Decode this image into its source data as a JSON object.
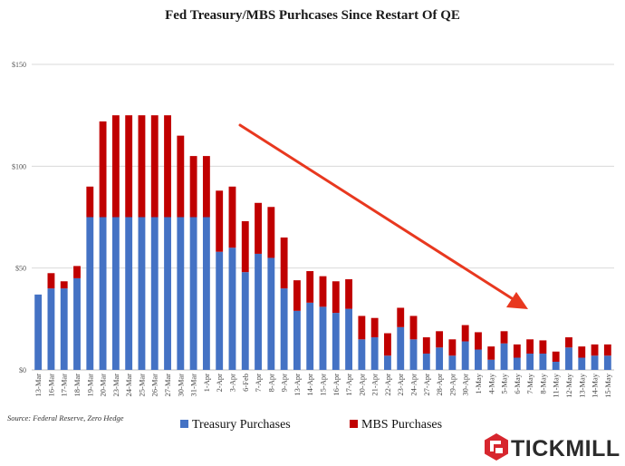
{
  "colors": {
    "treasury": "#4472c4",
    "mbs": "#c00000",
    "arrow": "#e8381f",
    "grid": "#d9d9d9",
    "logo": "#d7262e"
  },
  "logo": {
    "text": "TICKMILL",
    "icon": "tickmill-hexagon-icon"
  },
  "source": "Source: Federal Reserve, Zero Hedge",
  "annotation": {
    "type": "downward-trend-arrow"
  },
  "chart_data": {
    "type": "bar",
    "stacked": true,
    "title": "Fed Treasury/MBS Purhcases Since Restart Of QE",
    "xlabel": "",
    "ylabel": "",
    "ylim": [
      0,
      150
    ],
    "yticks": [
      {
        "value": 0,
        "label": "$0"
      },
      {
        "value": 50,
        "label": "$50"
      },
      {
        "value": 100,
        "label": "$100"
      },
      {
        "value": 150,
        "label": "$150"
      }
    ],
    "grid": true,
    "legend_position": "bottom-center",
    "categories": [
      "13-Mar",
      "16-Mar",
      "17-Mar",
      "18-Mar",
      "19-Mar",
      "20-Mar",
      "23-Mar",
      "24-Mar",
      "25-Mar",
      "26-Mar",
      "27-Mar",
      "30-Mar",
      "31-Mar",
      "1-Apr",
      "2-Apr",
      "3-Apr",
      "6-Feb",
      "7-Apr",
      "8-Apr",
      "9-Apr",
      "13-Apr",
      "14-Apr",
      "15-Apr",
      "16-Apr",
      "17-Apr",
      "20-Apr",
      "21-Apr",
      "22-Apr",
      "23-Apr",
      "24-Apr",
      "27-Apr",
      "28-Apr",
      "29-Apr",
      "30-Apr",
      "1-May",
      "4-May",
      "5-May",
      "6-May",
      "7-May",
      "8-May",
      "11-May",
      "12-May",
      "13-May",
      "14-May",
      "15-May"
    ],
    "series": [
      {
        "name": "Treasury Purchases",
        "values": [
          37,
          40,
          40,
          45,
          75,
          75,
          75,
          75,
          75,
          75,
          75,
          75,
          75,
          75,
          58,
          60,
          48,
          57,
          55,
          40,
          29,
          33,
          31,
          28,
          30,
          15,
          16,
          7,
          21,
          15,
          8,
          11,
          7,
          14,
          10,
          5,
          13,
          6,
          8,
          8,
          4,
          11,
          6,
          7,
          7
        ]
      },
      {
        "name": "MBS Purchases",
        "values": [
          0,
          7.5,
          3.5,
          6,
          15,
          47,
          50,
          50,
          50,
          50,
          50,
          40,
          30,
          30,
          30,
          30,
          25,
          25,
          25,
          25,
          15,
          15.5,
          15,
          15.5,
          14.5,
          11.5,
          9.5,
          11,
          9.5,
          11.5,
          8,
          8,
          8,
          8,
          8.5,
          6.5,
          6,
          6.5,
          7,
          6.5,
          5,
          5,
          5.5,
          5.5,
          5.5
        ]
      }
    ]
  }
}
